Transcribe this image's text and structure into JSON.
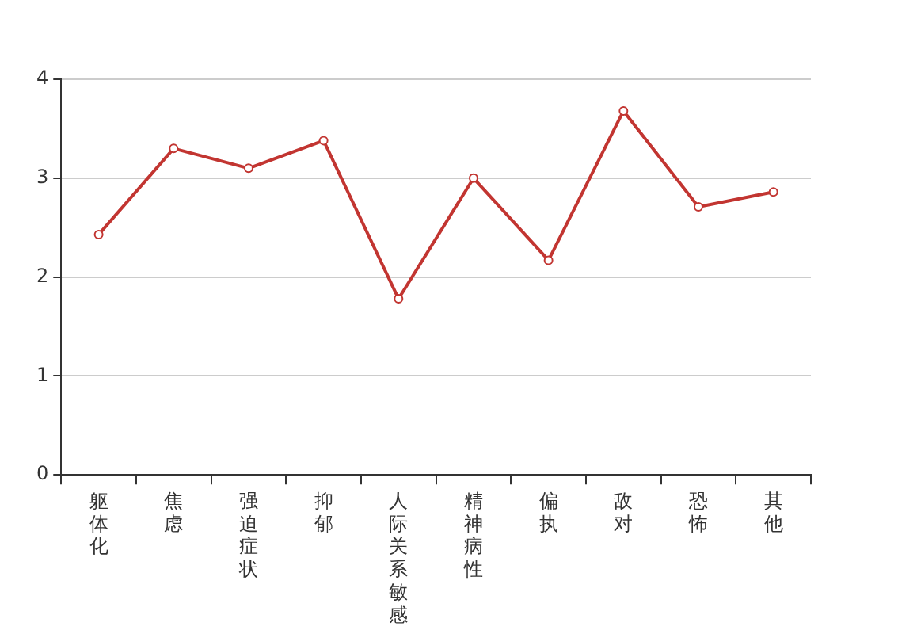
{
  "chart_data": {
    "type": "line",
    "categories": [
      "躯体化",
      "焦虑",
      "强迫症状",
      "抑郁",
      "人际关系敏感",
      "精神病性",
      "偏执",
      "敌对",
      "恐怖",
      "其他"
    ],
    "series": [
      {
        "color": "#c23531",
        "values": [
          2.43,
          3.3,
          3.1,
          3.38,
          1.78,
          3.0,
          2.17,
          3.68,
          2.71,
          2.86
        ]
      }
    ],
    "ylim": [
      0,
      4
    ],
    "yticks": [
      0,
      1,
      2,
      3,
      4
    ],
    "grid": "y",
    "marker": "circle",
    "line_style": "solid",
    "legend": false
  }
}
